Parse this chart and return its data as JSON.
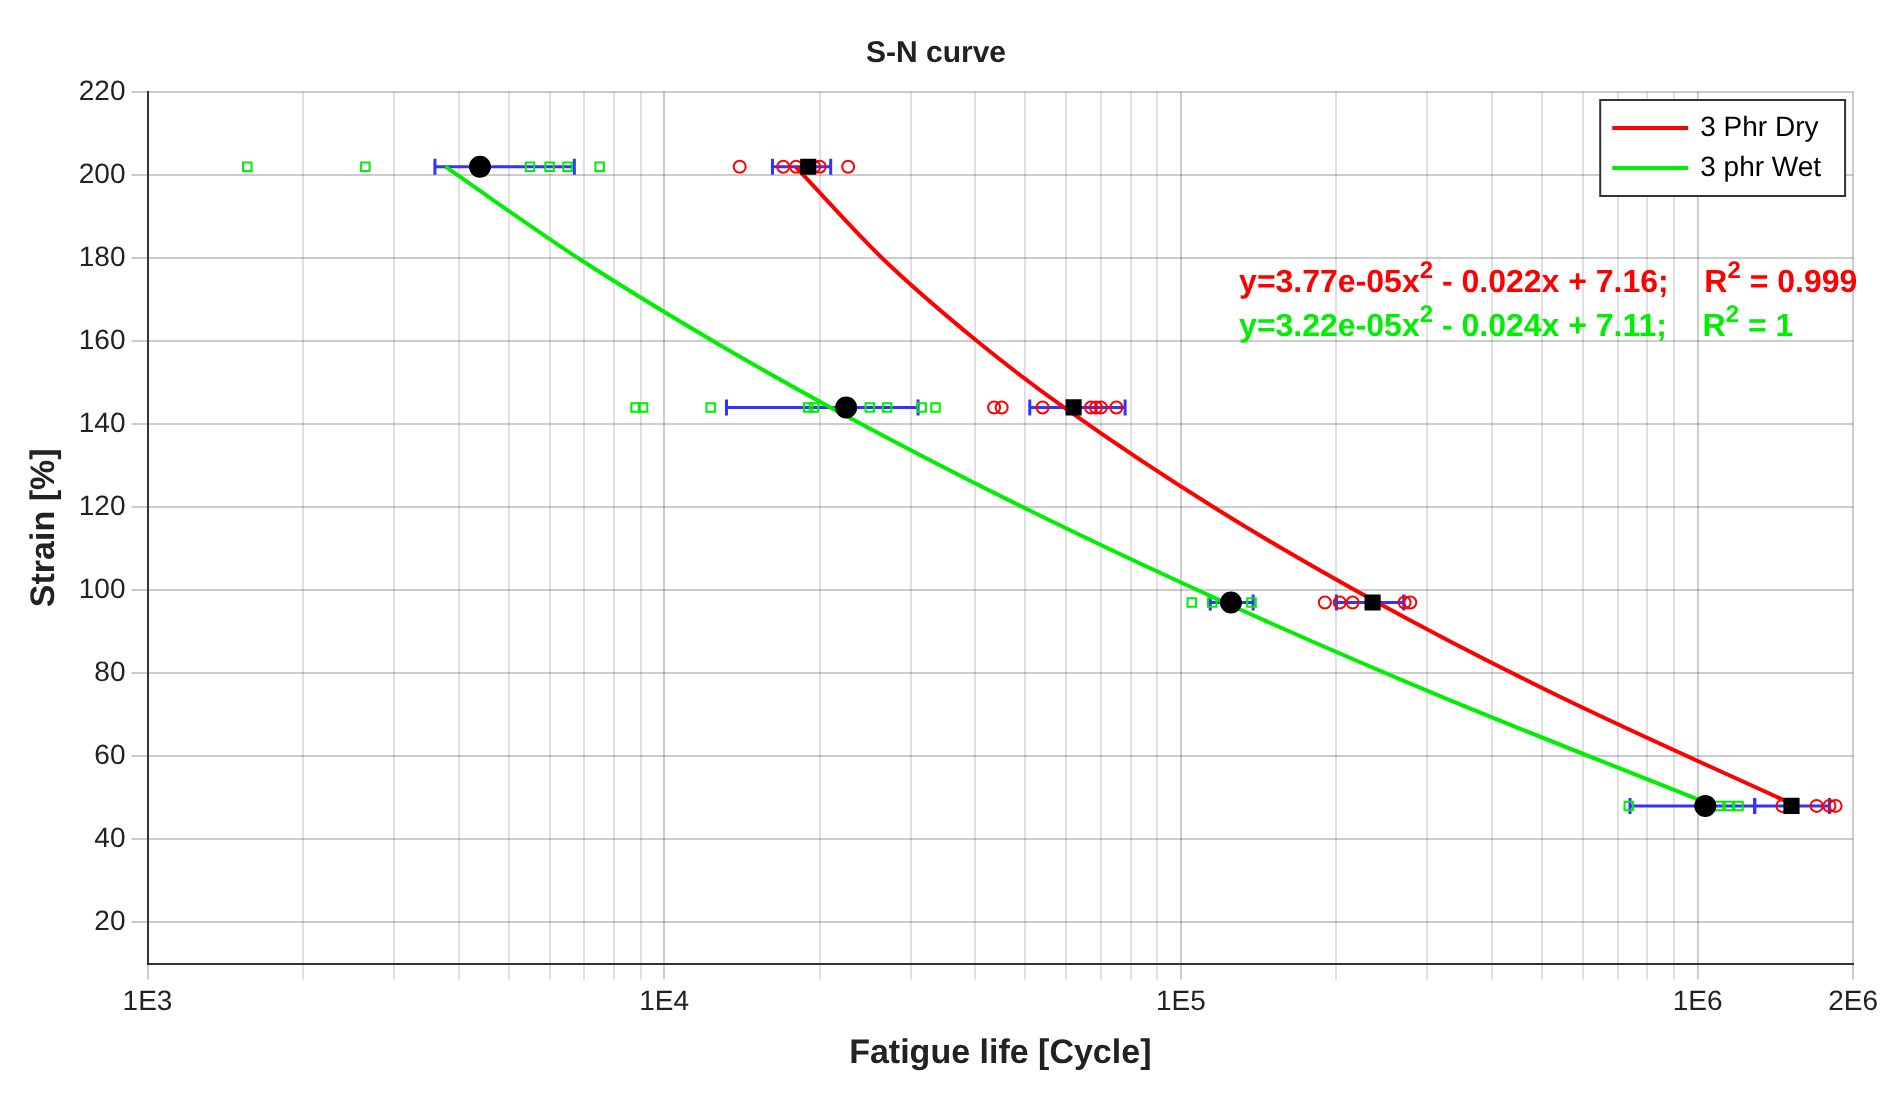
{
  "chart_data": {
    "type": "scatter",
    "title": "S-N curve",
    "xlabel": "Fatigue life [Cycle]",
    "ylabel": "Strain [%]",
    "log": "x",
    "grid": true,
    "legend": "top right",
    "xlim": [
      1000,
      2000000
    ],
    "xticks": [
      {
        "value": 1000,
        "label": "1E3"
      },
      {
        "value": 2000,
        "label": null
      },
      {
        "value": 3000,
        "label": null
      },
      {
        "value": 4000,
        "label": null
      },
      {
        "value": 5000,
        "label": null
      },
      {
        "value": 6000,
        "label": null
      },
      {
        "value": 7000,
        "label": null
      },
      {
        "value": 8000,
        "label": null
      },
      {
        "value": 9000,
        "label": null
      },
      {
        "value": 10000,
        "label": "1E4"
      },
      {
        "value": 20000,
        "label": null
      },
      {
        "value": 30000,
        "label": null
      },
      {
        "value": 40000,
        "label": null
      },
      {
        "value": 50000,
        "label": null
      },
      {
        "value": 60000,
        "label": null
      },
      {
        "value": 70000,
        "label": null
      },
      {
        "value": 80000,
        "label": null
      },
      {
        "value": 90000,
        "label": null
      },
      {
        "value": 100000,
        "label": "1E5"
      },
      {
        "value": 200000,
        "label": null
      },
      {
        "value": 300000,
        "label": null
      },
      {
        "value": 400000,
        "label": null
      },
      {
        "value": 500000,
        "label": null
      },
      {
        "value": 600000,
        "label": null
      },
      {
        "value": 700000,
        "label": null
      },
      {
        "value": 800000,
        "label": null
      },
      {
        "value": 900000,
        "label": null
      },
      {
        "value": 1000000,
        "label": "1E6"
      },
      {
        "value": 2000000,
        "label": "2E6"
      }
    ],
    "ylim": [
      10,
      220
    ],
    "yticks": [
      20,
      40,
      60,
      80,
      100,
      120,
      140,
      160,
      180,
      200,
      220
    ],
    "annotations": [
      "y=3.77e-05x$^{2}$ - 0.022x + 7.16;    R$^{2}$ = 0.999",
      "y=3.22e-05x$^{2}$ - 0.024x + 7.11;    R$^{2}$ = 1"
    ],
    "series": [
      {
        "name": "3 Phr Dry",
        "type": "line",
        "color": "#ff0000",
        "marker": "none",
        "x": [
          17950,
          26400,
          40300,
          59400,
          115600,
          240000,
          527000,
          1552000
        ],
        "values": [
          202,
          180,
          160,
          144,
          120,
          97,
          75,
          48
        ]
      },
      {
        "name": "3 phr Wet",
        "type": "line",
        "color": "#00ee00",
        "marker": "none",
        "x": [
          3770,
          6810,
          12430,
          20980,
          49400,
          121600,
          310000,
          1077000
        ],
        "values": [
          202,
          180,
          160,
          144,
          120,
          97,
          75,
          48
        ]
      },
      {
        "type": "scatter",
        "color": "#ff0000",
        "marker": "circle",
        "x": [
          14000,
          17000,
          18000,
          19500,
          20000,
          22700,
          43500,
          45000,
          54000,
          67000,
          68500,
          70000,
          75000,
          190000,
          203000,
          215000,
          271000,
          278000,
          1460000,
          1700000,
          1800000,
          1850000
        ],
        "values": [
          202,
          202,
          202,
          202,
          202,
          202,
          144,
          144,
          144,
          144,
          144,
          144,
          144,
          97,
          97,
          97,
          97,
          97,
          48,
          48,
          48,
          48
        ]
      },
      {
        "type": "scatter",
        "color": "#00ee00",
        "marker": "square",
        "x": [
          1560,
          2640,
          5500,
          6000,
          6500,
          7500,
          8800,
          9100,
          12300,
          19000,
          19500,
          25000,
          27000,
          31500,
          33500,
          105000,
          115000,
          137000,
          736000,
          1100000,
          1150000,
          1200000
        ],
        "values": [
          202,
          202,
          202,
          202,
          202,
          202,
          144,
          144,
          144,
          144,
          144,
          144,
          144,
          144,
          144,
          97,
          97,
          97,
          48,
          48,
          48,
          48
        ]
      },
      {
        "type": "scatter",
        "color": "#000000",
        "marker": "square",
        "x": [
          19000,
          62000,
          235000,
          1520000
        ],
        "values": [
          202,
          144,
          97,
          48
        ],
        "xerrors": [
          [
            16200,
            21000
          ],
          [
            51000,
            78000
          ],
          [
            200000,
            270000
          ],
          [
            1290000,
            1800000
          ]
        ]
      },
      {
        "type": "scatter",
        "color": "#000000",
        "marker": "circle",
        "x": [
          4400,
          22500,
          125000,
          1035000
        ],
        "values": [
          202,
          144,
          97,
          48
        ],
        "xerrors": [
          [
            3600,
            6700
          ],
          [
            13200,
            31000
          ],
          [
            114000,
            138000
          ],
          [
            740000,
            1290000
          ]
        ]
      }
    ]
  }
}
